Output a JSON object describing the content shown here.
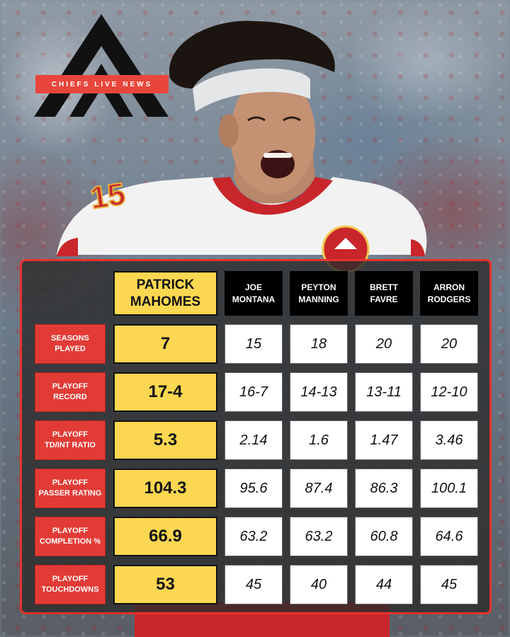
{
  "brand": {
    "logo_text": "CHIEFS LIVE NEWS",
    "accent": "#e8463c"
  },
  "colors": {
    "mahomes_highlight": "#fcd751",
    "label_red": "#e23b36",
    "header_black": "#000000",
    "frame_red": "#e8322c"
  },
  "jersey_number": "15",
  "table": {
    "players": [
      "PATRICK MAHOMES",
      "JOE MONTANA",
      "PEYTON MANNING",
      "BRETT FAVRE",
      "ARRON RODGERS"
    ],
    "player_lines": [
      [
        "PATRICK",
        "MAHOMES"
      ],
      [
        "JOE",
        "MONTANA"
      ],
      [
        "PEYTON",
        "MANNING"
      ],
      [
        "BRETT",
        "FAVRE"
      ],
      [
        "ARRON",
        "RODGERS"
      ]
    ],
    "rows": [
      {
        "label_lines": [
          "SEASONS",
          "PLAYED"
        ],
        "values": [
          "7",
          "15",
          "18",
          "20",
          "20"
        ]
      },
      {
        "label_lines": [
          "PLAYOFF",
          "RECORD"
        ],
        "values": [
          "17-4",
          "16-7",
          "14-13",
          "13-11",
          "12-10"
        ]
      },
      {
        "label_lines": [
          "PLAYOFF",
          "TD/INT RATIO"
        ],
        "values": [
          "5.3",
          "2.14",
          "1.6",
          "1.47",
          "3.46"
        ]
      },
      {
        "label_lines": [
          "PLAYOFF",
          "PASSER RATING"
        ],
        "values": [
          "104.3",
          "95.6",
          "87.4",
          "86.3",
          "100.1"
        ]
      },
      {
        "label_lines": [
          "PLAYOFF",
          "COMPLETION %"
        ],
        "values": [
          "66.9",
          "63.2",
          "63.2",
          "60.8",
          "64.6"
        ]
      },
      {
        "label_lines": [
          "PLAYOFF",
          "TOUCHDOWNS"
        ],
        "values": [
          "53",
          "45",
          "40",
          "44",
          "45"
        ]
      }
    ]
  }
}
